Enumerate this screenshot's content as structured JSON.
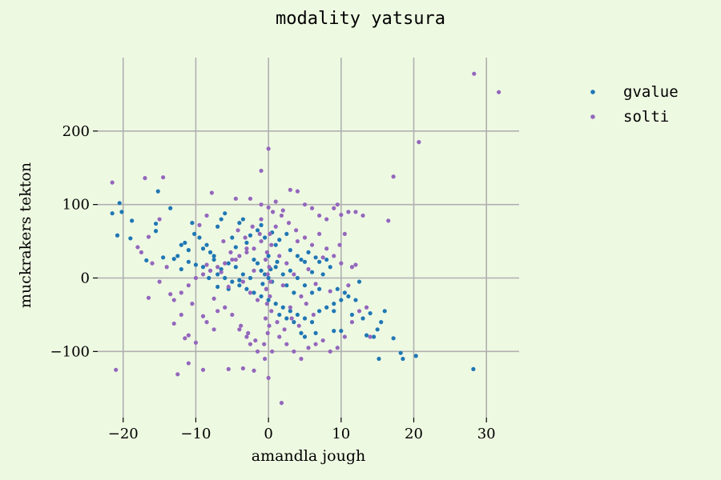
{
  "chart_data": {
    "type": "scatter",
    "title": "modality yatsura",
    "xlabel": "amandla jough",
    "ylabel": "muckrakers tekton",
    "xlim": [
      -23.5,
      34.5
    ],
    "ylim": [
      -190,
      300
    ],
    "xticks": [
      -20,
      -10,
      0,
      10,
      20,
      30
    ],
    "yticks": [
      -100,
      0,
      100,
      200
    ],
    "xtick_labels": [
      "−20",
      "−10",
      "0",
      "10",
      "20",
      "30"
    ],
    "ytick_labels": [
      "−100",
      "0",
      "100",
      "200"
    ],
    "grid": true,
    "legend_position": "top-right, outside plot",
    "series": [
      {
        "name": "gvalue",
        "color": "#1f77b4",
        "points": [
          [
            -21.5,
            88
          ],
          [
            -20.5,
            102
          ],
          [
            -20.2,
            90
          ],
          [
            -20.8,
            58
          ],
          [
            -18.8,
            78
          ],
          [
            -19,
            54
          ],
          [
            -15.2,
            118
          ],
          [
            -15.5,
            64
          ],
          [
            -14.5,
            28
          ],
          [
            -13.5,
            95
          ],
          [
            -16.8,
            24
          ],
          [
            -15.5,
            74
          ],
          [
            -12.5,
            30
          ],
          [
            -11.5,
            48
          ],
          [
            -11,
            38
          ],
          [
            -10.5,
            75
          ],
          [
            -10.2,
            60
          ],
          [
            -9,
            40
          ],
          [
            -8.5,
            45
          ],
          [
            -8,
            35
          ],
          [
            -7.5,
            30
          ],
          [
            -6.5,
            80
          ],
          [
            -6,
            88
          ],
          [
            -7,
            70
          ],
          [
            -4,
            75
          ],
          [
            -3.5,
            80
          ],
          [
            -5,
            55
          ],
          [
            -4.5,
            42
          ],
          [
            -3,
            48
          ],
          [
            -2.5,
            58
          ],
          [
            -1.5,
            65
          ],
          [
            -1,
            72
          ],
          [
            -0.5,
            55
          ],
          [
            0.5,
            62
          ],
          [
            1,
            45
          ],
          [
            1.5,
            52
          ],
          [
            2.5,
            60
          ],
          [
            3,
            38
          ],
          [
            4,
            30
          ],
          [
            4.5,
            25
          ],
          [
            5,
            22
          ],
          [
            5.5,
            35
          ],
          [
            6.5,
            28
          ],
          [
            7,
            22
          ],
          [
            8,
            25
          ],
          [
            8.5,
            15
          ],
          [
            6,
            8
          ],
          [
            7.5,
            5
          ],
          [
            -9,
            15
          ],
          [
            -8,
            10
          ],
          [
            -7,
            5
          ],
          [
            -6,
            0
          ],
          [
            -5,
            -5
          ],
          [
            -4,
            -10
          ],
          [
            -3,
            -15
          ],
          [
            -2,
            -20
          ],
          [
            -1,
            -25
          ],
          [
            0,
            -30
          ],
          [
            1,
            -35
          ],
          [
            2,
            -40
          ],
          [
            3,
            -45
          ],
          [
            4,
            -50
          ],
          [
            5,
            -55
          ],
          [
            6,
            -60
          ],
          [
            7,
            -45
          ],
          [
            8,
            -40
          ],
          [
            9,
            -35
          ],
          [
            10,
            -30
          ],
          [
            11,
            -25
          ],
          [
            12,
            -30
          ],
          [
            12.5,
            -5
          ],
          [
            10.5,
            -20
          ],
          [
            9.5,
            -15
          ],
          [
            9,
            -45
          ],
          [
            11.5,
            -50
          ],
          [
            13,
            -55
          ],
          [
            14,
            -48
          ],
          [
            13.5,
            -78
          ],
          [
            14.5,
            -80
          ],
          [
            15,
            -70
          ],
          [
            15.5,
            -60
          ],
          [
            16,
            -45
          ],
          [
            17.2,
            -82
          ],
          [
            15.2,
            -110
          ],
          [
            18.2,
            -102
          ],
          [
            18.5,
            -110
          ],
          [
            20.3,
            -106
          ],
          [
            28.2,
            -124
          ],
          [
            10,
            -72
          ],
          [
            9,
            -72
          ],
          [
            6.5,
            -75
          ],
          [
            5,
            -80
          ],
          [
            4.5,
            -75
          ],
          [
            3.5,
            -60
          ],
          [
            2.5,
            -55
          ],
          [
            1.5,
            -50
          ],
          [
            -1,
            10
          ],
          [
            -0.5,
            5
          ],
          [
            0,
            0
          ],
          [
            0.5,
            -5
          ],
          [
            1,
            15
          ],
          [
            -1.5,
            20
          ],
          [
            -2,
            25
          ],
          [
            0,
            30
          ],
          [
            1.2,
            22
          ],
          [
            -0.8,
            -8
          ],
          [
            0.3,
            12
          ],
          [
            -0.3,
            -15
          ],
          [
            2,
            5
          ],
          [
            3,
            10
          ],
          [
            -2.5,
            0
          ],
          [
            -3.5,
            5
          ],
          [
            2.5,
            -10
          ],
          [
            3.5,
            -20
          ],
          [
            -4.5,
            15
          ],
          [
            -5.5,
            20
          ],
          [
            4,
            0
          ],
          [
            5,
            -10
          ],
          [
            6,
            -20
          ],
          [
            7,
            -15
          ],
          [
            -6.5,
            12
          ],
          [
            -7.5,
            25
          ],
          [
            -10,
            18
          ],
          [
            -11,
            22
          ],
          [
            -12,
            12
          ],
          [
            -13,
            26
          ],
          [
            -9.5,
            55
          ],
          [
            -12,
            45
          ],
          [
            -8.2,
            0
          ],
          [
            -7,
            -12
          ],
          [
            -5.5,
            -15
          ],
          [
            -4,
            -3
          ]
        ]
      },
      {
        "name": "solti",
        "color": "#9467bd",
        "points": [
          [
            -21.5,
            130
          ],
          [
            -17,
            136
          ],
          [
            -14.5,
            137
          ],
          [
            -21,
            -125
          ],
          [
            -12.5,
            -131
          ],
          [
            -11,
            -116
          ],
          [
            -9,
            -125
          ],
          [
            -5.5,
            -124
          ],
          [
            -3.5,
            -123
          ],
          [
            -2,
            -126
          ],
          [
            0,
            -136
          ],
          [
            1.8,
            -170
          ],
          [
            0,
            176
          ],
          [
            -1,
            146
          ],
          [
            -4.5,
            108
          ],
          [
            -2.5,
            108
          ],
          [
            -1,
            100
          ],
          [
            0,
            96
          ],
          [
            1,
            104
          ],
          [
            2,
            92
          ],
          [
            3,
            120
          ],
          [
            4,
            118
          ],
          [
            5,
            100
          ],
          [
            6,
            95
          ],
          [
            7,
            85
          ],
          [
            8,
            80
          ],
          [
            9,
            95
          ],
          [
            9.5,
            100
          ],
          [
            10,
            86
          ],
          [
            11,
            90
          ],
          [
            12,
            90
          ],
          [
            13,
            85
          ],
          [
            16.5,
            78
          ],
          [
            17.2,
            138
          ],
          [
            20.7,
            185
          ],
          [
            28.3,
            278
          ],
          [
            31.7,
            253
          ],
          [
            -7.8,
            116
          ],
          [
            -8.5,
            85
          ],
          [
            -9.5,
            72
          ],
          [
            -15,
            80
          ],
          [
            -16.5,
            56
          ],
          [
            -18,
            42
          ],
          [
            -17.5,
            35
          ],
          [
            -16,
            20
          ],
          [
            -15,
            -5
          ],
          [
            -16.5,
            -27
          ],
          [
            -13.5,
            -22
          ],
          [
            -13,
            -62
          ],
          [
            -11.5,
            -82
          ],
          [
            -11,
            -78
          ],
          [
            -10,
            -88
          ],
          [
            -9,
            -52
          ],
          [
            -8.5,
            -60
          ],
          [
            -7.5,
            -70
          ],
          [
            -7,
            -45
          ],
          [
            -6,
            -40
          ],
          [
            -5,
            -50
          ],
          [
            -4,
            -70
          ],
          [
            -3,
            -80
          ],
          [
            -2.5,
            -90
          ],
          [
            -1.5,
            -100
          ],
          [
            -0.5,
            -110
          ],
          [
            0.5,
            -100
          ],
          [
            1.5,
            -80
          ],
          [
            2.5,
            -90
          ],
          [
            3.5,
            -100
          ],
          [
            4.5,
            -110
          ],
          [
            5.5,
            -95
          ],
          [
            6.5,
            -90
          ],
          [
            7.5,
            -85
          ],
          [
            8.5,
            -100
          ],
          [
            9.5,
            -95
          ],
          [
            10.5,
            -80
          ],
          [
            11.5,
            -60
          ],
          [
            12.5,
            -45
          ],
          [
            13.5,
            -40
          ],
          [
            14,
            -80
          ],
          [
            4,
            50
          ],
          [
            5,
            55
          ],
          [
            6,
            45
          ],
          [
            7,
            60
          ],
          [
            8,
            40
          ],
          [
            9,
            30
          ],
          [
            10,
            20
          ],
          [
            11.5,
            15
          ],
          [
            12,
            18
          ],
          [
            -1,
            50
          ],
          [
            -2,
            40
          ],
          [
            -3,
            35
          ],
          [
            -4,
            30
          ],
          [
            -5,
            25
          ],
          [
            -6,
            20
          ],
          [
            -7,
            15
          ],
          [
            -8,
            10
          ],
          [
            -9,
            5
          ],
          [
            -10,
            0
          ],
          [
            -11,
            -10
          ],
          [
            -12,
            -20
          ],
          [
            -13,
            -30
          ],
          [
            0.2,
            60
          ],
          [
            0.4,
            45
          ],
          [
            -0.2,
            35
          ],
          [
            -0.4,
            25
          ],
          [
            0.1,
            15
          ],
          [
            -0.1,
            5
          ],
          [
            0.3,
            -5
          ],
          [
            -0.3,
            -15
          ],
          [
            0.2,
            -25
          ],
          [
            -0.2,
            -35
          ],
          [
            0.4,
            -45
          ],
          [
            -0.4,
            -55
          ],
          [
            0.1,
            -65
          ],
          [
            -0.1,
            -75
          ],
          [
            1,
            70
          ],
          [
            -1,
            80
          ],
          [
            1.5,
            30
          ],
          [
            -1.5,
            -30
          ],
          [
            2,
            -10
          ],
          [
            -2,
            10
          ],
          [
            2.5,
            20
          ],
          [
            -2.5,
            -20
          ],
          [
            3,
            -40
          ],
          [
            -3,
            40
          ],
          [
            3.5,
            5
          ],
          [
            -3.5,
            -5
          ],
          [
            4.5,
            -25
          ],
          [
            -4.5,
            25
          ],
          [
            5.5,
            12
          ],
          [
            -5.5,
            -12
          ],
          [
            6.5,
            -8
          ],
          [
            -6.5,
            8
          ],
          [
            7.5,
            28
          ],
          [
            -7.5,
            -28
          ],
          [
            8.5,
            -18
          ],
          [
            -8.5,
            18
          ],
          [
            1.2,
            -60
          ],
          [
            -1.2,
            60
          ],
          [
            2.2,
            -70
          ],
          [
            -2.2,
            70
          ],
          [
            3.2,
            -55
          ],
          [
            -3.2,
            55
          ],
          [
            4.2,
            -65
          ],
          [
            -4.2,
            65
          ],
          [
            5.2,
            -35
          ],
          [
            -5.2,
            35
          ],
          [
            6.2,
            -50
          ],
          [
            -6.2,
            50
          ],
          [
            0.6,
            90
          ],
          [
            -0.6,
            -90
          ],
          [
            1.8,
            85
          ],
          [
            -1.8,
            -85
          ],
          [
            2.8,
            75
          ],
          [
            -2.8,
            -75
          ],
          [
            3.8,
            65
          ],
          [
            -3.8,
            -65
          ],
          [
            -10.5,
            -35
          ],
          [
            -12,
            -50
          ],
          [
            -14,
            15
          ],
          [
            9.8,
            45
          ],
          [
            10.5,
            60
          ],
          [
            11,
            -10
          ]
        ]
      }
    ]
  }
}
